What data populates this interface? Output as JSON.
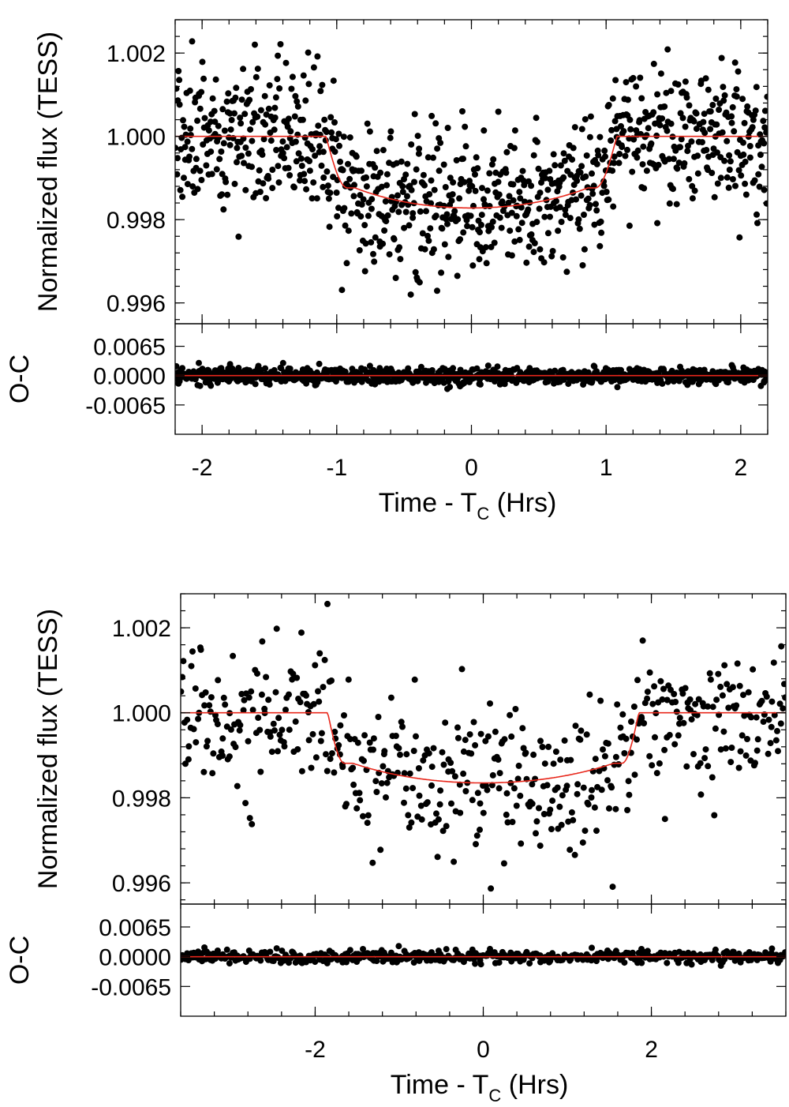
{
  "colors": {
    "data_points": "#000000",
    "model_line": "#e8271b",
    "axes": "#000000"
  },
  "chart_data": [
    {
      "type": "scatter",
      "title": "",
      "panels": {
        "flux": {
          "ylabel": "Normalized flux (TESS)",
          "ylim": [
            0.9955,
            1.0028
          ],
          "yticks": [
            0.996,
            0.998,
            1.0,
            1.002
          ],
          "ytick_labels": [
            "0.996",
            "0.998",
            "1.000",
            "1.002"
          ]
        },
        "residual": {
          "ylabel": "O-C",
          "ylim": [
            -0.013,
            0.0115
          ],
          "yticks": [
            -0.0065,
            0.0,
            0.0065
          ],
          "ytick_labels": [
            "-0.0065",
            "0.0000",
            "0.0065"
          ]
        }
      },
      "xlabel": {
        "main": "Time - T",
        "sub": "C",
        "unit": " (Hrs)"
      },
      "xlim": [
        -2.2,
        2.2
      ],
      "xticks": [
        -2,
        -1,
        0,
        1,
        2
      ],
      "xtick_labels": [
        "-2",
        "-1",
        "0",
        "1",
        "2"
      ],
      "transit": {
        "t1": -1.08,
        "t2": -0.92,
        "t3": 0.92,
        "t4": 1.08,
        "depth_flux": 0.99828,
        "baseline": 1.0
      },
      "series": [
        {
          "kind": "data",
          "n_points": 950,
          "scatter_flux": 0.00085,
          "scatter_residual": 0.0009
        },
        {
          "kind": "transit_model"
        }
      ]
    },
    {
      "type": "scatter",
      "title": "",
      "panels": {
        "flux": {
          "ylabel": "Normalized flux (TESS)",
          "ylim": [
            0.9955,
            1.0028
          ],
          "yticks": [
            0.996,
            0.998,
            1.0,
            1.002
          ],
          "ytick_labels": [
            "0.996",
            "0.998",
            "1.000",
            "1.002"
          ]
        },
        "residual": {
          "ylabel": "O-C",
          "ylim": [
            -0.013,
            0.0115
          ],
          "yticks": [
            -0.0065,
            0.0,
            0.0065
          ],
          "ytick_labels": [
            "-0.0065",
            "0.0000",
            "0.0065"
          ]
        }
      },
      "xlabel": {
        "main": "Time - T",
        "sub": "C",
        "unit": " (Hrs)"
      },
      "xlim": [
        -3.6,
        3.6
      ],
      "xticks": [
        -2,
        0,
        2
      ],
      "xtick_labels": [
        "-2",
        "0",
        "2"
      ],
      "transit": {
        "t1": -1.85,
        "t2": -1.65,
        "t3": 1.65,
        "t4": 1.85,
        "depth_flux": 0.99835,
        "baseline": 1.0
      },
      "series": [
        {
          "kind": "data",
          "n_points": 520,
          "scatter_flux": 0.00085,
          "scatter_residual": 0.0007
        },
        {
          "kind": "transit_model"
        }
      ]
    }
  ]
}
